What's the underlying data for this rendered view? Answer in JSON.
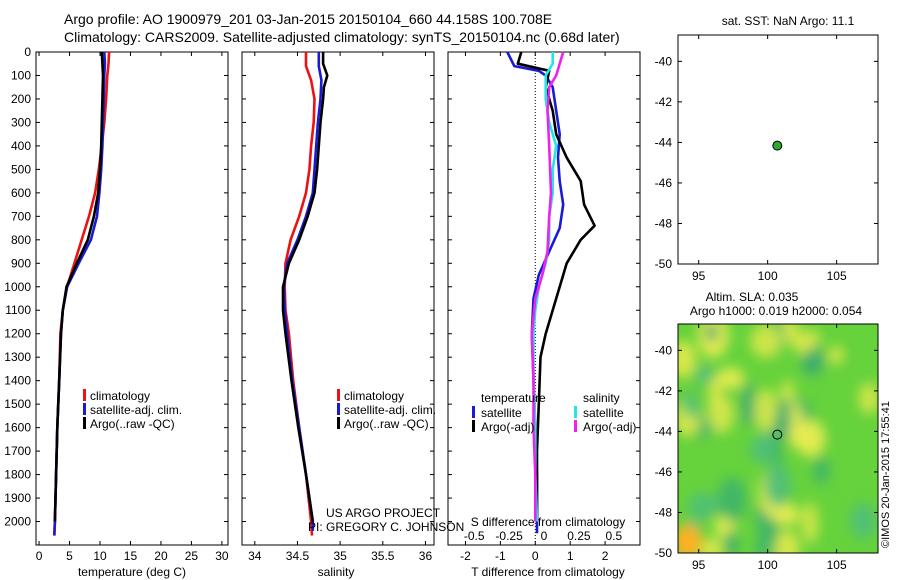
{
  "header": {
    "line1": "Argo profile: AO 1900979_201 03-Jan-2015 20150104_660 44.158S 100.708E",
    "line2": "Climatology: CARS2009. Satellite-adjusted climatology: synTS_20150104.nc (0.68d later)"
  },
  "colors": {
    "climatology": "#ee1111",
    "satellite": "#1a1ad6",
    "argo": "#000000",
    "sat_sal": "#22e6e6",
    "argo_sal": "#ee22ee",
    "marker": "#2ea82e"
  },
  "depth_ticks": [
    "0",
    "100",
    "200",
    "300",
    "400",
    "500",
    "600",
    "700",
    "800",
    "900",
    "1000",
    "1100",
    "1200",
    "1300",
    "1400",
    "1500",
    "1600",
    "1700",
    "1800",
    "1900",
    "2000"
  ],
  "chart_data": [
    {
      "type": "line",
      "xlabel": "temperature (deg C)",
      "xlim": [
        -0.5,
        31
      ],
      "ylim": [
        2100,
        0
      ],
      "xticks": [
        "0",
        "5",
        "10",
        "15",
        "20",
        "25",
        "30"
      ],
      "legend": [
        {
          "label": "climatology",
          "color": "#ee1111"
        },
        {
          "label": "satellite-adj. clim.",
          "color": "#1a1ad6"
        },
        {
          "label": "Argo(..raw -QC)",
          "color": "#000000"
        }
      ],
      "series": [
        {
          "color": "#ee1111",
          "points": [
            [
              11.5,
              0
            ],
            [
              11.4,
              50
            ],
            [
              11.2,
              100
            ],
            [
              11.0,
              200
            ],
            [
              10.7,
              300
            ],
            [
              10.3,
              400
            ],
            [
              9.8,
              500
            ],
            [
              9.2,
              600
            ],
            [
              8.2,
              700
            ],
            [
              7.0,
              800
            ],
            [
              5.8,
              900
            ],
            [
              4.6,
              1000
            ],
            [
              3.9,
              1100
            ],
            [
              3.5,
              1200
            ],
            [
              3.3,
              1400
            ],
            [
              3.0,
              1600
            ],
            [
              2.8,
              1800
            ],
            [
              2.6,
              2000
            ],
            [
              2.5,
              2060
            ]
          ]
        },
        {
          "color": "#1a1ad6",
          "points": [
            [
              10.7,
              0
            ],
            [
              10.8,
              50
            ],
            [
              10.7,
              100
            ],
            [
              10.6,
              200
            ],
            [
              10.5,
              300
            ],
            [
              10.4,
              400
            ],
            [
              10.2,
              500
            ],
            [
              9.9,
              600
            ],
            [
              9.5,
              700
            ],
            [
              8.5,
              800
            ],
            [
              6.5,
              900
            ],
            [
              4.6,
              1000
            ],
            [
              3.9,
              1100
            ],
            [
              3.6,
              1200
            ],
            [
              3.3,
              1400
            ],
            [
              3.0,
              1600
            ],
            [
              2.8,
              1800
            ],
            [
              2.6,
              2000
            ],
            [
              2.5,
              2060
            ]
          ]
        },
        {
          "color": "#000000",
          "points": [
            [
              10.3,
              0
            ],
            [
              10.4,
              50
            ],
            [
              10.5,
              100
            ],
            [
              10.4,
              200
            ],
            [
              10.3,
              300
            ],
            [
              10.2,
              400
            ],
            [
              10.0,
              500
            ],
            [
              9.7,
              600
            ],
            [
              9.0,
              700
            ],
            [
              8.0,
              800
            ],
            [
              6.2,
              900
            ],
            [
              4.5,
              1000
            ],
            [
              3.9,
              1100
            ],
            [
              3.6,
              1200
            ],
            [
              3.3,
              1400
            ],
            [
              3.0,
              1600
            ],
            [
              2.8,
              1800
            ],
            [
              2.6,
              2000
            ]
          ]
        }
      ]
    },
    {
      "type": "line",
      "xlabel": "salinity",
      "xlim": [
        33.85,
        36.1
      ],
      "ylim": [
        2100,
        0
      ],
      "xticks": [
        "34",
        "34.5",
        "35",
        "35.5",
        "36"
      ],
      "legend": [
        {
          "label": "climatology",
          "color": "#ee1111"
        },
        {
          "label": "satellite-adj. clim.",
          "color": "#1a1ad6"
        },
        {
          "label": "Argo(..raw -QC)",
          "color": "#000000"
        }
      ],
      "series": [
        {
          "color": "#ee1111",
          "points": [
            [
              34.6,
              0
            ],
            [
              34.6,
              60
            ],
            [
              34.66,
              120
            ],
            [
              34.7,
              200
            ],
            [
              34.69,
              300
            ],
            [
              34.66,
              400
            ],
            [
              34.64,
              500
            ],
            [
              34.6,
              600
            ],
            [
              34.52,
              700
            ],
            [
              34.42,
              800
            ],
            [
              34.36,
              900
            ],
            [
              34.35,
              1000
            ],
            [
              34.36,
              1100
            ],
            [
              34.4,
              1200
            ],
            [
              34.45,
              1400
            ],
            [
              34.52,
              1600
            ],
            [
              34.6,
              1800
            ],
            [
              34.66,
              2000
            ],
            [
              34.67,
              2060
            ]
          ]
        },
        {
          "color": "#1a1ad6",
          "points": [
            [
              34.75,
              0
            ],
            [
              34.75,
              60
            ],
            [
              34.78,
              120
            ],
            [
              34.77,
              200
            ],
            [
              34.74,
              300
            ],
            [
              34.72,
              400
            ],
            [
              34.7,
              500
            ],
            [
              34.68,
              600
            ],
            [
              34.6,
              700
            ],
            [
              34.5,
              800
            ],
            [
              34.38,
              900
            ],
            [
              34.34,
              1000
            ],
            [
              34.35,
              1100
            ],
            [
              34.38,
              1200
            ],
            [
              34.44,
              1400
            ],
            [
              34.52,
              1600
            ],
            [
              34.6,
              1800
            ],
            [
              34.68,
              2000
            ],
            [
              34.68,
              2040
            ]
          ]
        },
        {
          "color": "#000000",
          "points": [
            [
              34.8,
              0
            ],
            [
              34.8,
              50
            ],
            [
              34.85,
              100
            ],
            [
              34.81,
              150
            ],
            [
              34.8,
              200
            ],
            [
              34.77,
              300
            ],
            [
              34.75,
              400
            ],
            [
              34.73,
              500
            ],
            [
              34.7,
              600
            ],
            [
              34.62,
              700
            ],
            [
              34.52,
              800
            ],
            [
              34.4,
              900
            ],
            [
              34.33,
              1000
            ],
            [
              34.33,
              1100
            ],
            [
              34.36,
              1200
            ],
            [
              34.43,
              1400
            ],
            [
              34.51,
              1600
            ],
            [
              34.6,
              1800
            ],
            [
              34.68,
              2000
            ]
          ]
        }
      ]
    },
    {
      "type": "line",
      "xlabel": "T difference from climatology",
      "xlabel2": "S difference from climatology",
      "xlim": [
        -2.5,
        3
      ],
      "ylim": [
        2100,
        0
      ],
      "xticks": [
        "-2",
        "-1",
        "0",
        "1",
        "2"
      ],
      "xticks2": [
        "-0.5",
        "-0.25",
        "0",
        "0.25",
        "0.5"
      ],
      "legend_headers": [
        "temperature",
        "salinity"
      ],
      "legend": [
        {
          "label": "satellite",
          "color": "#1a1ad6"
        },
        {
          "label": "Argo(-adj)",
          "color": "#000000"
        },
        {
          "label": "satellite",
          "color": "#22e6e6"
        },
        {
          "label": "Argo(-adj)",
          "color": "#ee22ee"
        }
      ],
      "series": [
        {
          "color": "#1a1ad6",
          "points": [
            [
              -0.8,
              0
            ],
            [
              -0.6,
              60
            ],
            [
              0.1,
              80
            ],
            [
              0.3,
              100
            ],
            [
              0.5,
              150
            ],
            [
              0.6,
              250
            ],
            [
              0.7,
              350
            ],
            [
              0.65,
              450
            ],
            [
              0.7,
              550
            ],
            [
              0.8,
              650
            ],
            [
              0.7,
              750
            ],
            [
              0.4,
              850
            ],
            [
              0.1,
              950
            ],
            [
              -0.05,
              1050
            ],
            [
              -0.1,
              1200
            ],
            [
              -0.05,
              1400
            ],
            [
              0.0,
              1600
            ],
            [
              0.05,
              1800
            ],
            [
              0.05,
              2050
            ]
          ]
        },
        {
          "color": "#000000",
          "points": [
            [
              -0.4,
              0
            ],
            [
              -0.5,
              50
            ],
            [
              0.4,
              80
            ],
            [
              0.3,
              150
            ],
            [
              0.5,
              250
            ],
            [
              0.6,
              350
            ],
            [
              0.9,
              450
            ],
            [
              1.3,
              550
            ],
            [
              1.4,
              650
            ],
            [
              1.7,
              740
            ],
            [
              1.3,
              800
            ],
            [
              0.9,
              900
            ],
            [
              0.7,
              1000
            ],
            [
              0.5,
              1100
            ],
            [
              0.3,
              1200
            ],
            [
              0.15,
              1300
            ],
            [
              0.1,
              1500
            ],
            [
              0.05,
              1700
            ],
            [
              0.05,
              2000
            ]
          ]
        },
        {
          "color": "#22e6e6",
          "points": [
            [
              0.5,
              0
            ],
            [
              0.5,
              50
            ],
            [
              0.3,
              100
            ],
            [
              0.3,
              200
            ],
            [
              0.4,
              300
            ],
            [
              0.6,
              400
            ],
            [
              0.5,
              500
            ],
            [
              0.5,
              600
            ],
            [
              0.4,
              700
            ],
            [
              0.4,
              800
            ],
            [
              0.3,
              900
            ],
            [
              0.1,
              1000
            ],
            [
              0.0,
              1100
            ],
            [
              -0.05,
              1200
            ],
            [
              -0.05,
              1400
            ],
            [
              0.0,
              1600
            ],
            [
              0.0,
              1800
            ],
            [
              0.05,
              2000
            ]
          ]
        },
        {
          "color": "#ee22ee",
          "points": [
            [
              0.8,
              0
            ],
            [
              0.7,
              50
            ],
            [
              0.6,
              100
            ],
            [
              0.4,
              150
            ],
            [
              0.35,
              250
            ],
            [
              0.4,
              400
            ],
            [
              0.45,
              600
            ],
            [
              0.4,
              700
            ],
            [
              0.35,
              850
            ],
            [
              0.2,
              950
            ],
            [
              0.0,
              1050
            ],
            [
              -0.1,
              1200
            ],
            [
              -0.05,
              1400
            ],
            [
              -0.05,
              1600
            ],
            [
              0.0,
              1800
            ],
            [
              0.0,
              2000
            ]
          ]
        }
      ]
    },
    {
      "type": "scatter",
      "title": "sat. SST: NaN Argo: 11.1",
      "xlim": [
        93.5,
        108
      ],
      "ylim": [
        -50,
        -38.7
      ],
      "xticks": [
        "95",
        "100",
        "105"
      ],
      "yticks": [
        "-40",
        "-42",
        "-44",
        "-46",
        "-48",
        "-50"
      ],
      "points": [
        [
          100.7,
          -44.16
        ]
      ]
    },
    {
      "type": "heatmap",
      "title": "Altim. SLA: 0.035",
      "title2": "Argo h1000: 0.019 h2000: 0.054",
      "xlim": [
        93.5,
        108
      ],
      "ylim": [
        -50,
        -38.7
      ],
      "xticks": [
        "95",
        "100",
        "105"
      ],
      "yticks": [
        "-40",
        "-42",
        "-44",
        "-46",
        "-48",
        "-50"
      ],
      "points": [
        [
          100.7,
          -44.16
        ]
      ]
    }
  ],
  "credit": "©IMOS 20-Jan-2015 17:55:41",
  "project": {
    "line1": "US ARGO PROJECT",
    "line2": "PI: GREGORY C. JOHNSON"
  }
}
